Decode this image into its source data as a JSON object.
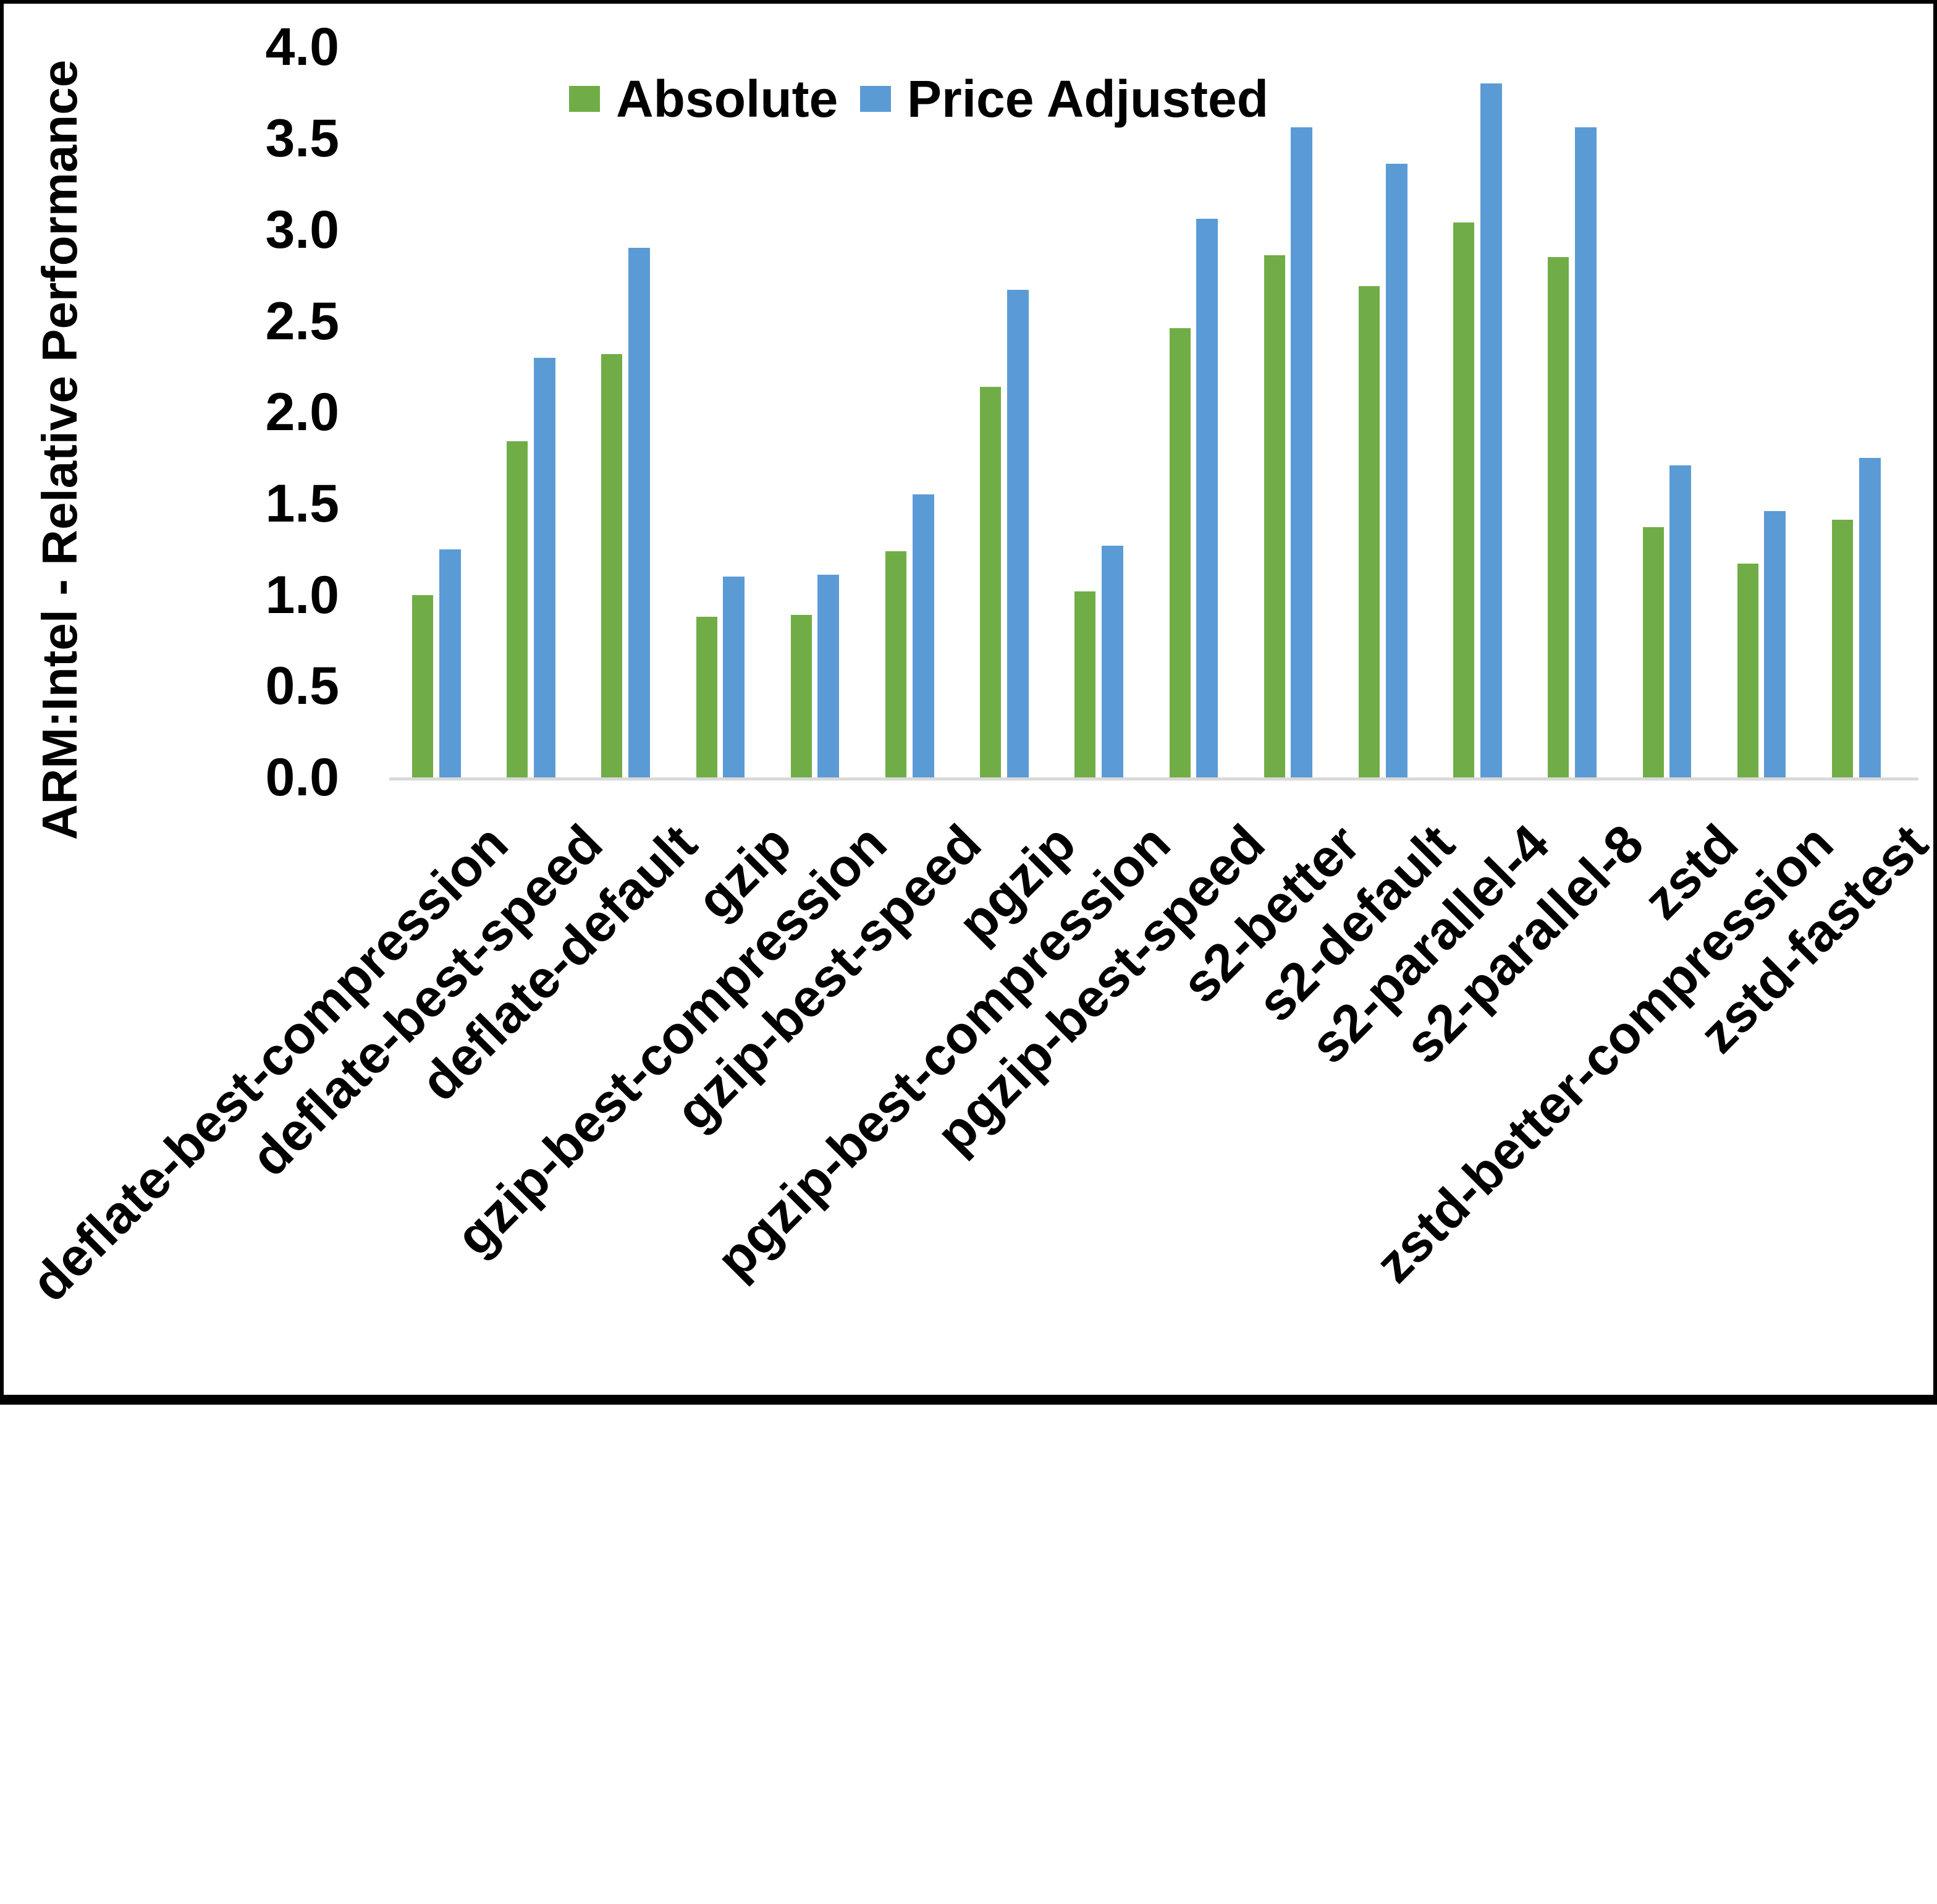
{
  "chart_data": {
    "type": "bar",
    "title": "",
    "ylabel": "ARM:Intel - Relative Performance",
    "xlabel": "",
    "ylim": [
      0.0,
      4.0
    ],
    "ytick_step": 0.5,
    "yticks": [
      "0.0",
      "0.5",
      "1.0",
      "1.5",
      "2.0",
      "2.5",
      "3.0",
      "3.5",
      "4.0"
    ],
    "grid": false,
    "legend_position": "top",
    "axis_line_color": "#D9D9D9",
    "text_color": "#000000",
    "frame_color": "#000000",
    "categories": [
      "deflate-best-compression",
      "deflate-best-speed",
      "deflate-default",
      "gzip",
      "gzip-best-compression",
      "gzip-best-speed",
      "pgzip",
      "pgzip-best-compression",
      "pgzip-best-speed",
      "s2-better",
      "s2-default",
      "s2-parallel-4",
      "s2-parallel-8",
      "zstd",
      "zstd-better-compression",
      "zstd-fastest"
    ],
    "series": [
      {
        "name": "Absolute",
        "color": "#70AD47",
        "values": [
          1.0,
          1.84,
          2.32,
          0.88,
          0.89,
          1.24,
          2.14,
          1.02,
          2.46,
          2.86,
          2.69,
          3.04,
          2.85,
          1.37,
          1.17,
          1.41
        ]
      },
      {
        "name": "Price Adjusted",
        "color": "#5B9BD5",
        "values": [
          1.25,
          2.3,
          2.9,
          1.1,
          1.11,
          1.55,
          2.67,
          1.27,
          3.06,
          3.56,
          3.36,
          3.8,
          3.56,
          1.71,
          1.46,
          1.75
        ]
      }
    ]
  }
}
